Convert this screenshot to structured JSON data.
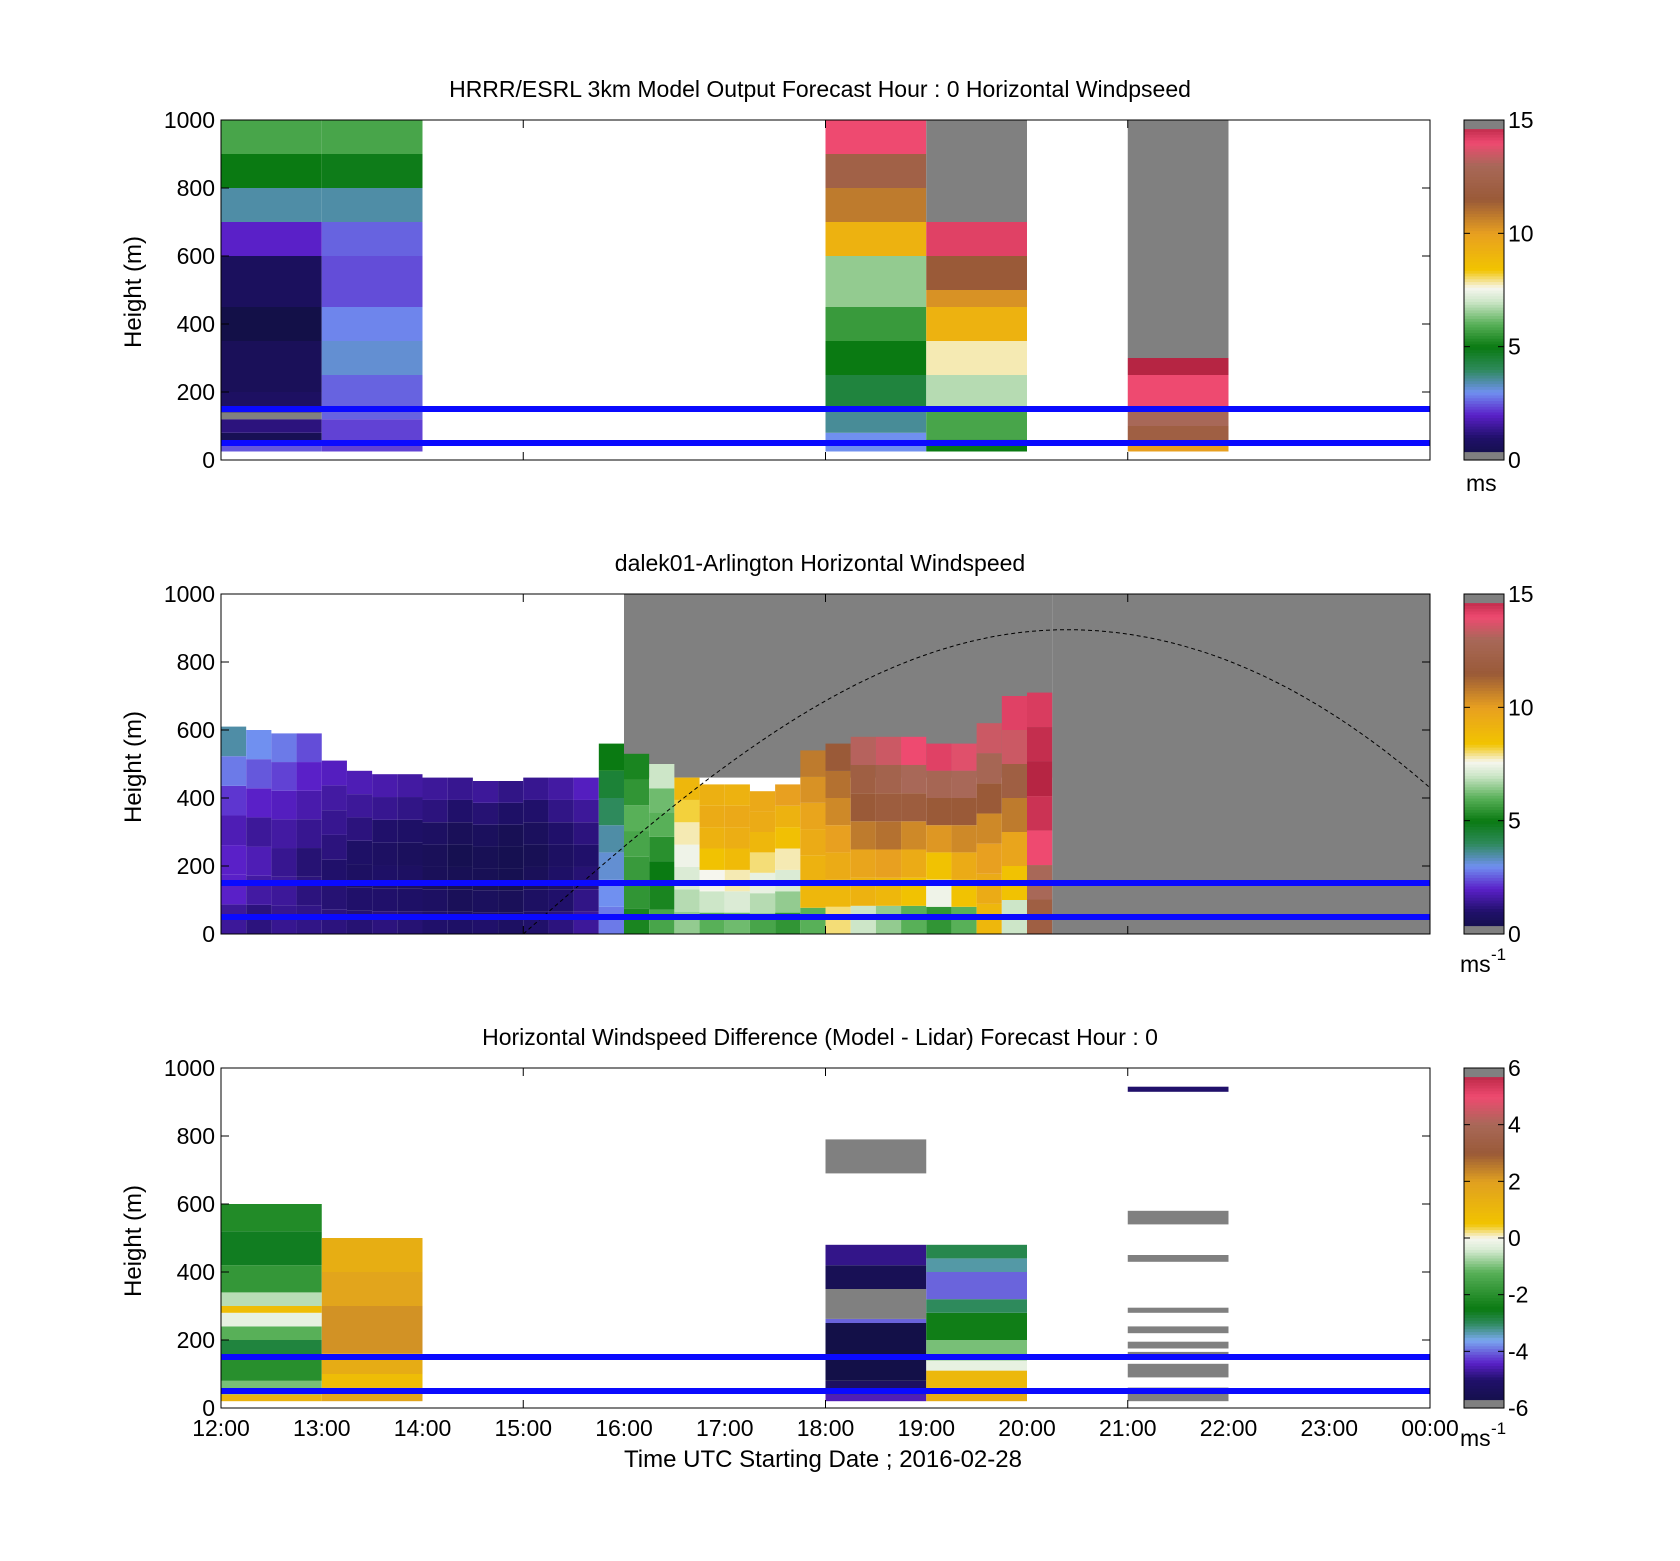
{
  "chart_data": [
    {
      "type": "heatmap",
      "title": "HRRR/ESRL 3km Model Output   Forecast Hour : 0 Horizontal Windpseed",
      "ylabel": "Height (m)",
      "xlabel": "",
      "ylim": [
        0,
        1000
      ],
      "yticks": [
        "0",
        "200",
        "400",
        "600",
        "800",
        "1000"
      ],
      "xrange_hours": [
        12,
        24
      ],
      "colorbar": {
        "min": 0,
        "max": 15,
        "ticks": [
          "0",
          "5",
          "10",
          "15"
        ],
        "unit": "ms"
      },
      "reference_lines_m": [
        50,
        150
      ],
      "columns": [
        {
          "start": 12,
          "end": 13,
          "segments": [
            {
              "h0": 25,
              "h1": 45,
              "v": 2.5
            },
            {
              "h0": 45,
              "h1": 80,
              "v": 0.5
            },
            {
              "h0": 80,
              "h1": 120,
              "v": 1.2
            },
            {
              "h0": 120,
              "h1": 140,
              "v": -1
            },
            {
              "h0": 140,
              "h1": 200,
              "v": 0.8
            },
            {
              "h0": 200,
              "h1": 350,
              "v": 0.6
            },
            {
              "h0": 350,
              "h1": 450,
              "v": 0.2
            },
            {
              "h0": 450,
              "h1": 600,
              "v": 0.7
            },
            {
              "h0": 600,
              "h1": 700,
              "v": 2.0
            },
            {
              "h0": 700,
              "h1": 800,
              "v": 3.5
            },
            {
              "h0": 800,
              "h1": 900,
              "v": 5.0
            },
            {
              "h0": 900,
              "h1": 1000,
              "v": 5.8
            }
          ]
        },
        {
          "start": 13,
          "end": 14,
          "segments": [
            {
              "h0": 25,
              "h1": 120,
              "v": 2.3
            },
            {
              "h0": 120,
              "h1": 250,
              "v": 2.6
            },
            {
              "h0": 250,
              "h1": 350,
              "v": 3.2
            },
            {
              "h0": 350,
              "h1": 450,
              "v": 2.9
            },
            {
              "h0": 450,
              "h1": 600,
              "v": 2.4
            },
            {
              "h0": 600,
              "h1": 700,
              "v": 2.6
            },
            {
              "h0": 700,
              "h1": 800,
              "v": 3.5
            },
            {
              "h0": 800,
              "h1": 900,
              "v": 4.9
            },
            {
              "h0": 900,
              "h1": 1000,
              "v": 5.8
            }
          ]
        },
        {
          "start": 18,
          "end": 19,
          "segments": [
            {
              "h0": 25,
              "h1": 80,
              "v": 3.0
            },
            {
              "h0": 80,
              "h1": 150,
              "v": 3.6
            },
            {
              "h0": 150,
              "h1": 250,
              "v": 4.4
            },
            {
              "h0": 250,
              "h1": 350,
              "v": 5.0
            },
            {
              "h0": 350,
              "h1": 450,
              "v": 5.6
            },
            {
              "h0": 450,
              "h1": 600,
              "v": 6.5
            },
            {
              "h0": 600,
              "h1": 700,
              "v": 9.2
            },
            {
              "h0": 700,
              "h1": 800,
              "v": 10.8
            },
            {
              "h0": 800,
              "h1": 900,
              "v": 12.2
            },
            {
              "h0": 900,
              "h1": 1000,
              "v": 14.0
            }
          ]
        },
        {
          "start": 19,
          "end": 20,
          "segments": [
            {
              "h0": 25,
              "h1": 60,
              "v": 5.0
            },
            {
              "h0": 60,
              "h1": 150,
              "v": 5.8
            },
            {
              "h0": 150,
              "h1": 250,
              "v": 6.8
            },
            {
              "h0": 250,
              "h1": 350,
              "v": 7.8
            },
            {
              "h0": 350,
              "h1": 450,
              "v": 9.2
            },
            {
              "h0": 450,
              "h1": 500,
              "v": 10.3
            },
            {
              "h0": 500,
              "h1": 600,
              "v": 11.5
            },
            {
              "h0": 600,
              "h1": 700,
              "v": 14.2
            },
            {
              "h0": 700,
              "h1": 1000,
              "v": -1
            }
          ]
        },
        {
          "start": 21,
          "end": 22,
          "segments": [
            {
              "h0": 25,
              "h1": 45,
              "v": 10.0
            },
            {
              "h0": 45,
              "h1": 100,
              "v": 12.0
            },
            {
              "h0": 100,
              "h1": 150,
              "v": 13.0
            },
            {
              "h0": 150,
              "h1": 250,
              "v": 14.0
            },
            {
              "h0": 250,
              "h1": 300,
              "v": 14.8
            },
            {
              "h0": 300,
              "h1": 1000,
              "v": -1
            }
          ]
        }
      ]
    },
    {
      "type": "heatmap",
      "title": "dalek01-Arlington  Horizontal Windspeed",
      "ylabel": "Height (m)",
      "xlabel": "",
      "ylim": [
        0,
        1000
      ],
      "yticks": [
        "0",
        "200",
        "400",
        "600",
        "800",
        "1000"
      ],
      "xrange_hours": [
        12,
        24
      ],
      "colorbar": {
        "min": 0,
        "max": 15,
        "ticks": [
          "0",
          "5",
          "10",
          "15"
        ],
        "unit": "ms",
        "unit_exp": "-1"
      },
      "reference_lines_m": [
        50,
        150
      ],
      "boundary_curve": {
        "start_hour": 15.0,
        "peak_hour": 20.4,
        "peak_m": 895,
        "end_hour": 24.0,
        "end_m": 430
      },
      "column_width_hours": 0.25,
      "columns": [
        {
          "hour": 12.0,
          "top": 610,
          "v": [
            1.5,
            2.0,
            2.0,
            1.8,
            2.2,
            2.8,
            3.5
          ]
        },
        {
          "hour": 12.25,
          "top": 600,
          "v": [
            1.2,
            1.6,
            1.8,
            1.5,
            2.0,
            2.5,
            3.0
          ]
        },
        {
          "hour": 12.5,
          "top": 590,
          "v": [
            1.4,
            1.5,
            1.4,
            1.6,
            1.9,
            2.3,
            2.8
          ]
        },
        {
          "hour": 12.75,
          "top": 590,
          "v": [
            1.3,
            1.2,
            1.1,
            1.4,
            1.7,
            2.0,
            2.4
          ]
        },
        {
          "hour": 13.0,
          "top": 510,
          "v": [
            1.2,
            1.1,
            1.0,
            1.2,
            1.4,
            1.6,
            1.9
          ]
        },
        {
          "hour": 13.25,
          "top": 480,
          "v": [
            1.1,
            1.0,
            0.8,
            0.9,
            1.2,
            1.5,
            1.8
          ]
        },
        {
          "hour": 13.5,
          "top": 470,
          "v": [
            1.2,
            1.0,
            0.9,
            0.8,
            1.0,
            1.4,
            1.7
          ]
        },
        {
          "hour": 13.75,
          "top": 470,
          "v": [
            1.1,
            0.9,
            0.8,
            0.7,
            0.9,
            1.3,
            1.6
          ]
        },
        {
          "hour": 14.0,
          "top": 460,
          "v": [
            1.0,
            0.8,
            0.6,
            0.6,
            0.8,
            1.2,
            1.5
          ]
        },
        {
          "hour": 14.25,
          "top": 460,
          "v": [
            0.9,
            0.6,
            0.5,
            0.4,
            0.6,
            1.0,
            1.4
          ]
        },
        {
          "hour": 14.5,
          "top": 450,
          "v": [
            1.0,
            0.7,
            0.5,
            0.5,
            0.7,
            1.1,
            1.5
          ]
        },
        {
          "hour": 14.75,
          "top": 450,
          "v": [
            0.8,
            0.6,
            0.4,
            0.4,
            0.5,
            0.9,
            1.3
          ]
        },
        {
          "hour": 15.0,
          "top": 460,
          "v": [
            1.0,
            0.8,
            0.6,
            0.5,
            0.7,
            1.0,
            1.4
          ]
        },
        {
          "hour": 15.25,
          "top": 460,
          "v": [
            1.2,
            1.0,
            0.9,
            0.8,
            1.0,
            1.3,
            1.6
          ]
        },
        {
          "hour": 15.5,
          "top": 460,
          "v": [
            1.5,
            1.3,
            1.1,
            1.0,
            1.2,
            1.5,
            1.9
          ]
        },
        {
          "hour": 15.75,
          "top": 560,
          "v": [
            2.8,
            3.0,
            3.2,
            3.5,
            4.0,
            4.5,
            5.0
          ]
        },
        {
          "hour": 16.0,
          "top": 530,
          "v": [
            5.2,
            5.5,
            5.6,
            5.8,
            6.0,
            5.5,
            5.2
          ]
        },
        {
          "hour": 16.25,
          "top": 500,
          "v": [
            5.8,
            5.2,
            5.0,
            5.4,
            6.0,
            6.2,
            7.0
          ]
        },
        {
          "hour": 16.5,
          "top": 460,
          "v": [
            6.5,
            6.8,
            7.2,
            7.5,
            7.8,
            8.2,
            9.0
          ]
        },
        {
          "hour": 16.75,
          "top": 440,
          "v": [
            6.0,
            7.0,
            7.6,
            8.5,
            9.2,
            9.5,
            9.3
          ]
        },
        {
          "hour": 17.0,
          "top": 440,
          "v": [
            6.2,
            7.2,
            7.8,
            8.8,
            9.4,
            9.6,
            9.2
          ]
        },
        {
          "hour": 17.25,
          "top": 420,
          "v": [
            5.8,
            6.8,
            7.4,
            8.0,
            9.0,
            9.5,
            9.6
          ]
        },
        {
          "hour": 17.5,
          "top": 440,
          "v": [
            5.5,
            6.5,
            7.2,
            7.8,
            8.6,
            9.2,
            10.0
          ]
        },
        {
          "hour": 17.75,
          "top": 540,
          "v": [
            6.0,
            9.0,
            9.2,
            9.5,
            9.8,
            10.3,
            10.8
          ]
        },
        {
          "hour": 18.0,
          "top": 560,
          "v": [
            8.0,
            9.0,
            9.5,
            10.0,
            10.5,
            11.0,
            11.5
          ]
        },
        {
          "hour": 18.25,
          "top": 580,
          "v": [
            7.0,
            9.2,
            9.8,
            10.8,
            11.5,
            12.0,
            13.2
          ]
        },
        {
          "hour": 18.5,
          "top": 580,
          "v": [
            6.5,
            9.0,
            10.0,
            11.0,
            11.8,
            12.5,
            13.5
          ]
        },
        {
          "hour": 18.75,
          "top": 580,
          "v": [
            6.0,
            8.5,
            9.5,
            10.5,
            11.8,
            13.0,
            14.0
          ]
        },
        {
          "hour": 19.0,
          "top": 560,
          "v": [
            5.5,
            7.5,
            8.5,
            10.2,
            11.5,
            12.8,
            14.2
          ]
        },
        {
          "hour": 19.25,
          "top": 560,
          "v": [
            6.0,
            8.5,
            9.5,
            10.5,
            11.5,
            13.0,
            13.8
          ]
        },
        {
          "hour": 19.5,
          "top": 620,
          "v": [
            9.0,
            9.5,
            10.0,
            10.5,
            11.5,
            12.8,
            13.5
          ]
        },
        {
          "hour": 19.75,
          "top": 700,
          "v": [
            7.0,
            8.5,
            9.8,
            10.8,
            12.0,
            13.5,
            14.2
          ]
        },
        {
          "hour": 20.0,
          "top": 710,
          "v": [
            12.0,
            13.0,
            14.0,
            14.5,
            14.8,
            14.6,
            14.3
          ]
        }
      ]
    },
    {
      "type": "heatmap",
      "title": "Horizontal Windspeed Difference (Model - Lidar) Forecast Hour : 0",
      "ylabel": "Height (m)",
      "xlabel": "Time UTC  Starting Date ; 2016-02-28",
      "ylim": [
        0,
        1000
      ],
      "yticks": [
        "0",
        "200",
        "400",
        "600",
        "800",
        "1000"
      ],
      "xticks": [
        "12:00",
        "13:00",
        "14:00",
        "15:00",
        "16:00",
        "17:00",
        "18:00",
        "19:00",
        "20:00",
        "21:00",
        "22:00",
        "23:00",
        "00:00"
      ],
      "xrange_hours": [
        12,
        24
      ],
      "colorbar": {
        "min": -6,
        "max": 6,
        "ticks": [
          "-6",
          "-4",
          "-2",
          "0",
          "2",
          "4",
          "6"
        ],
        "unit": "ms",
        "unit_exp": "-1"
      },
      "reference_lines_m": [
        50,
        150
      ],
      "columns": [
        {
          "start": 12,
          "end": 13,
          "segments": [
            {
              "h0": 20,
              "h1": 40,
              "v": 1.2
            },
            {
              "h0": 40,
              "h1": 80,
              "v": -1.0
            },
            {
              "h0": 80,
              "h1": 150,
              "v": -2.0
            },
            {
              "h0": 150,
              "h1": 200,
              "v": -2.8
            },
            {
              "h0": 200,
              "h1": 240,
              "v": -1.2
            },
            {
              "h0": 240,
              "h1": 280,
              "v": -0.2
            },
            {
              "h0": 280,
              "h1": 300,
              "v": 0.8
            },
            {
              "h0": 300,
              "h1": 340,
              "v": -0.6
            },
            {
              "h0": 340,
              "h1": 420,
              "v": -1.8
            },
            {
              "h0": 420,
              "h1": 520,
              "v": -2.6
            },
            {
              "h0": 520,
              "h1": 600,
              "v": -2.1
            }
          ]
        },
        {
          "start": 13,
          "end": 14,
          "segments": [
            {
              "h0": 20,
              "h1": 60,
              "v": 1.8
            },
            {
              "h0": 60,
              "h1": 100,
              "v": 0.8
            },
            {
              "h0": 100,
              "h1": 160,
              "v": 1.5
            },
            {
              "h0": 160,
              "h1": 300,
              "v": 2.2
            },
            {
              "h0": 300,
              "h1": 400,
              "v": 1.8
            },
            {
              "h0": 400,
              "h1": 500,
              "v": 1.4
            }
          ]
        },
        {
          "start": 18,
          "end": 19,
          "segments": [
            {
              "h0": 20,
              "h1": 40,
              "v": -4.5
            },
            {
              "h0": 40,
              "h1": 80,
              "v": -5.2
            },
            {
              "h0": 80,
              "h1": 250,
              "v": -5.8
            },
            {
              "h0": 250,
              "h1": 262,
              "v": -4.0
            },
            {
              "h0": 262,
              "h1": 350,
              "v": -7.0
            },
            {
              "h0": 350,
              "h1": 420,
              "v": -5.5
            },
            {
              "h0": 420,
              "h1": 480,
              "v": -4.8
            },
            {
              "h0": 690,
              "h1": 790,
              "v": -7.0
            }
          ]
        },
        {
          "start": 19,
          "end": 20,
          "segments": [
            {
              "h0": 20,
              "h1": 60,
              "v": 1.5
            },
            {
              "h0": 60,
              "h1": 110,
              "v": 1.0
            },
            {
              "h0": 110,
              "h1": 140,
              "v": -0.2
            },
            {
              "h0": 140,
              "h1": 200,
              "v": -1.0
            },
            {
              "h0": 200,
              "h1": 280,
              "v": -2.4
            },
            {
              "h0": 280,
              "h1": 320,
              "v": -3.0
            },
            {
              "h0": 320,
              "h1": 400,
              "v": -4.0
            },
            {
              "h0": 400,
              "h1": 440,
              "v": -3.3
            },
            {
              "h0": 440,
              "h1": 480,
              "v": -2.9
            }
          ]
        },
        {
          "start": 21,
          "end": 22,
          "segments": [
            {
              "h0": 20,
              "h1": 60,
              "v": -7.0
            },
            {
              "h0": 90,
              "h1": 130,
              "v": -7.0
            },
            {
              "h0": 150,
              "h1": 165,
              "v": -7.0
            },
            {
              "h0": 175,
              "h1": 195,
              "v": -7.0
            },
            {
              "h0": 220,
              "h1": 240,
              "v": -7.0
            },
            {
              "h0": 280,
              "h1": 295,
              "v": -7.0
            },
            {
              "h0": 430,
              "h1": 450,
              "v": -7.0
            },
            {
              "h0": 540,
              "h1": 580,
              "v": -7.0
            },
            {
              "h0": 930,
              "h1": 945,
              "v": -5.0
            }
          ]
        }
      ]
    }
  ]
}
